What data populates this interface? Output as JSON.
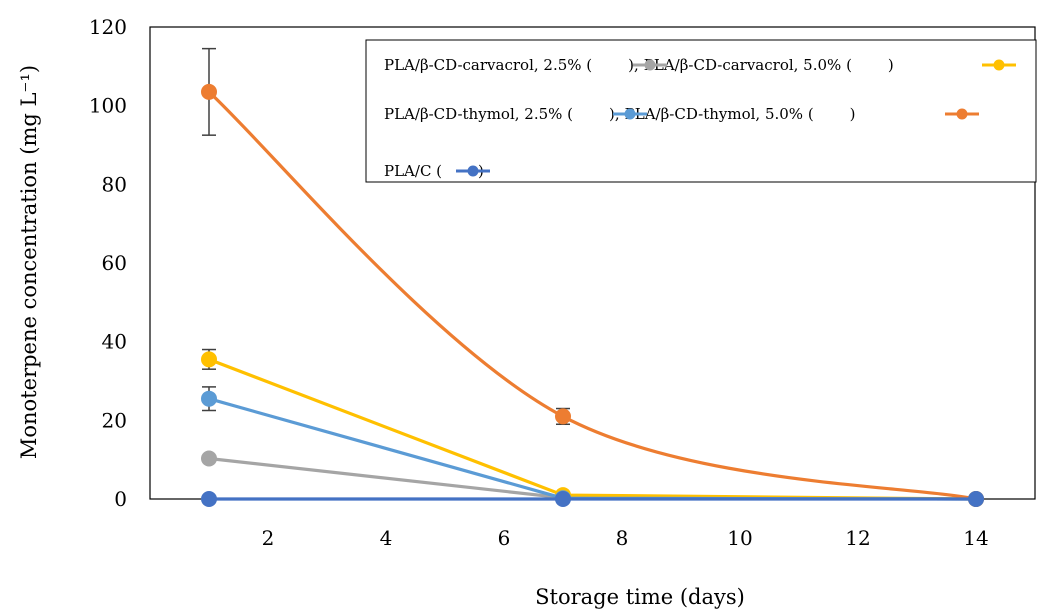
{
  "chart_data": {
    "type": "line",
    "title": "",
    "xlabel": "Storage time (days)",
    "ylabel": "Monoterpene concentration (mg L⁻¹)",
    "xlim": [
      0,
      15
    ],
    "ylim": [
      0,
      120
    ],
    "x_ticks": [
      "2",
      "4",
      "6",
      "8",
      "10",
      "12",
      "14"
    ],
    "y_ticks": [
      "0",
      "20",
      "40",
      "60",
      "80",
      "100",
      "120"
    ],
    "x": [
      1,
      7,
      14
    ],
    "legend_placement": "top-right",
    "legend_lines": [
      "PLA/β-CD-carvacrol,  2.5% (    ); PLA/β-CD-carvacrol,  5.0% (    )",
      "PLA/β-CD-thymol,  2.5% (    ); PLA/β-CD-thymol,  5.0% (    )",
      "PLA/C (    )"
    ],
    "series": [
      {
        "name": "PLA/β-CD-carvacrol, 2.5%",
        "color": "#a5a5a5",
        "values": [
          10.3,
          0.3,
          0
        ],
        "errors": [
          0,
          0,
          0
        ],
        "smooth": false
      },
      {
        "name": "PLA/β-CD-carvacrol, 5.0%",
        "color": "#ffc000",
        "values": [
          35.5,
          1.0,
          0
        ],
        "errors": [
          2.5,
          0,
          0
        ],
        "smooth": false
      },
      {
        "name": "PLA/β-CD-thymol, 2.5%",
        "color": "#5b9bd5",
        "values": [
          25.5,
          0.2,
          0
        ],
        "errors": [
          3.0,
          0,
          0
        ],
        "smooth": false
      },
      {
        "name": "PLA/β-CD-thymol, 5.0%",
        "color": "#ed7d31",
        "values": [
          103.5,
          21.0,
          0
        ],
        "errors": [
          11.0,
          2.0,
          0
        ],
        "smooth": true
      },
      {
        "name": "PLA/C",
        "color": "#4472c4",
        "values": [
          0,
          0,
          0
        ],
        "errors": [
          0,
          0,
          0
        ],
        "smooth": false
      }
    ]
  }
}
